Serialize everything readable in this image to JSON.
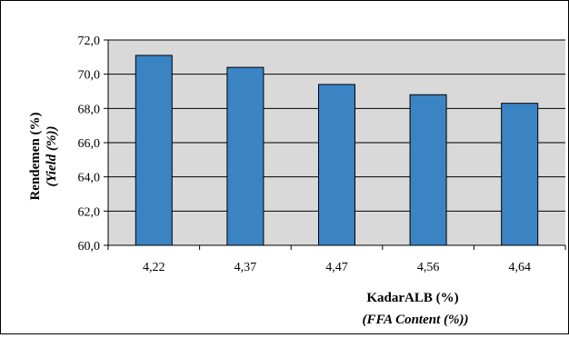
{
  "chart_data": {
    "type": "bar",
    "categories": [
      "4,22",
      "4,37",
      "4,47",
      "4,56",
      "4,64"
    ],
    "values": [
      71.1,
      70.4,
      69.4,
      68.8,
      68.3
    ],
    "ylim": [
      60,
      72
    ],
    "yticks": [
      "60,0",
      "62,0",
      "64,0",
      "66,0",
      "68,0",
      "70,0",
      "72,0"
    ],
    "ytick_values": [
      60,
      62,
      64,
      66,
      68,
      70,
      72
    ],
    "ylabel": "Rendemen (%)",
    "ylabel_sub": "(Yield (%))",
    "xlabel": "KadarALB (%)",
    "xlabel_sub": "(FFA Content (%))",
    "grid": true,
    "colors": {
      "bar": "#3A84C4",
      "plot_bg": "#D9D9D9",
      "bar_edge": "#000000"
    }
  }
}
